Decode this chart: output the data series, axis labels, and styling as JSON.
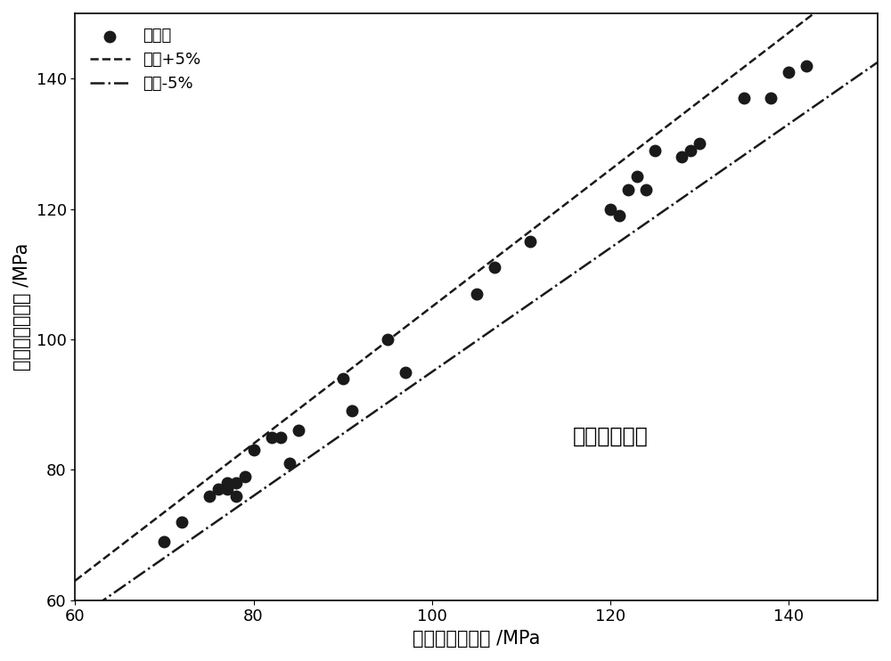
{
  "data_points_x": [
    70,
    72,
    75,
    76,
    77,
    77,
    78,
    78,
    79,
    80,
    82,
    83,
    84,
    85,
    90,
    91,
    95,
    97,
    105,
    107,
    111,
    120,
    121,
    122,
    123,
    124,
    125,
    128,
    129,
    130,
    135,
    138,
    140,
    142
  ],
  "data_points_y": [
    69,
    72,
    76,
    77,
    77,
    78,
    76,
    78,
    79,
    83,
    85,
    85,
    81,
    86,
    94,
    89,
    100,
    95,
    107,
    111,
    115,
    120,
    119,
    123,
    125,
    123,
    129,
    128,
    129,
    130,
    137,
    137,
    141,
    142
  ],
  "xlim": [
    60,
    150
  ],
  "ylim": [
    60,
    150
  ],
  "xticks": [
    60,
    80,
    100,
    120,
    140
  ],
  "yticks": [
    60,
    80,
    100,
    120,
    140
  ],
  "xlabel": "实测的流变应力 /MPa",
  "ylabel": "预测的流变应力 /MPa",
  "annotation": "粉末烧结纯铁",
  "legend_data": "数据点",
  "legend_plus5": "误差+5%",
  "legend_minus5": "误差-5%",
  "line_start": 60,
  "line_end": 150,
  "plus5_factor": 1.05,
  "minus5_factor": 0.95,
  "marker_color": "#1a1a1a",
  "line_color": "#1a1a1a",
  "background_color": "#ffffff",
  "marker_size": 9,
  "line_width": 1.8,
  "font_size_label": 15,
  "font_size_legend": 13,
  "font_size_annotation": 17,
  "font_size_tick": 13
}
